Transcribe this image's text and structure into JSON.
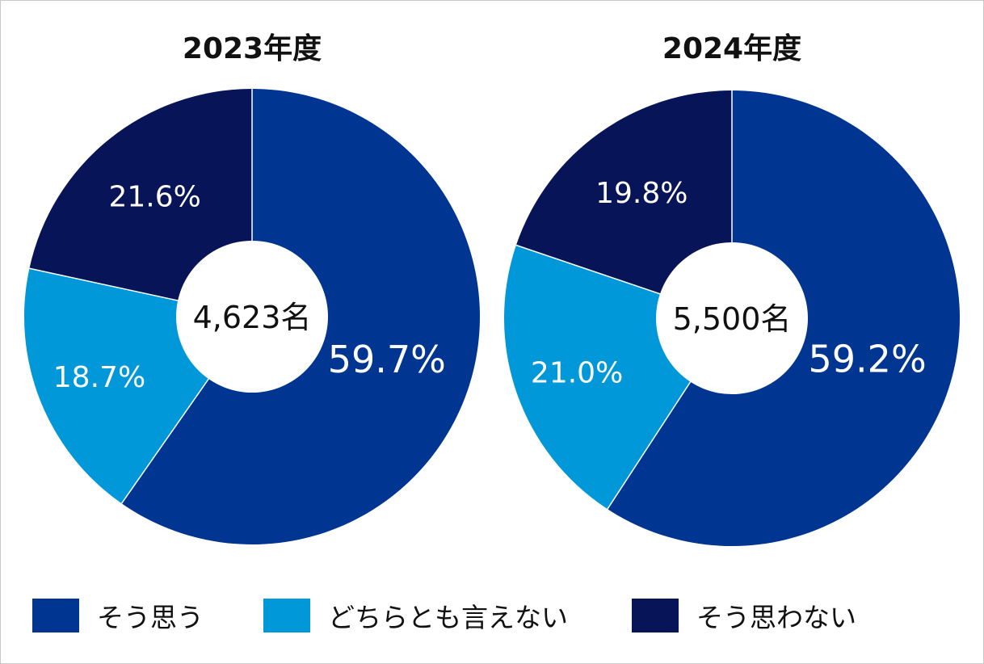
{
  "chart_data": [
    {
      "type": "pie",
      "title": "2023年度",
      "center_label": "4,623名",
      "categories": [
        "そう思う",
        "どちらとも言えない",
        "そう思わない"
      ],
      "values": [
        59.7,
        18.7,
        21.6
      ],
      "value_labels": [
        "59.7%",
        "18.7%",
        "21.6%"
      ]
    },
    {
      "type": "pie",
      "title": "2024年度",
      "center_label": "5,500名",
      "categories": [
        "そう思う",
        "どちらとも言えない",
        "そう思わない"
      ],
      "values": [
        59.2,
        21.0,
        19.8
      ],
      "value_labels": [
        "59.2%",
        "21.0%",
        "19.8%"
      ]
    }
  ],
  "legend": {
    "items": [
      {
        "label": "そう思う",
        "color": "#003591"
      },
      {
        "label": "どちらとも言えない",
        "color": "#0098d9"
      },
      {
        "label": "そう思わない",
        "color": "#071558"
      }
    ],
    "placement": "bottom"
  }
}
